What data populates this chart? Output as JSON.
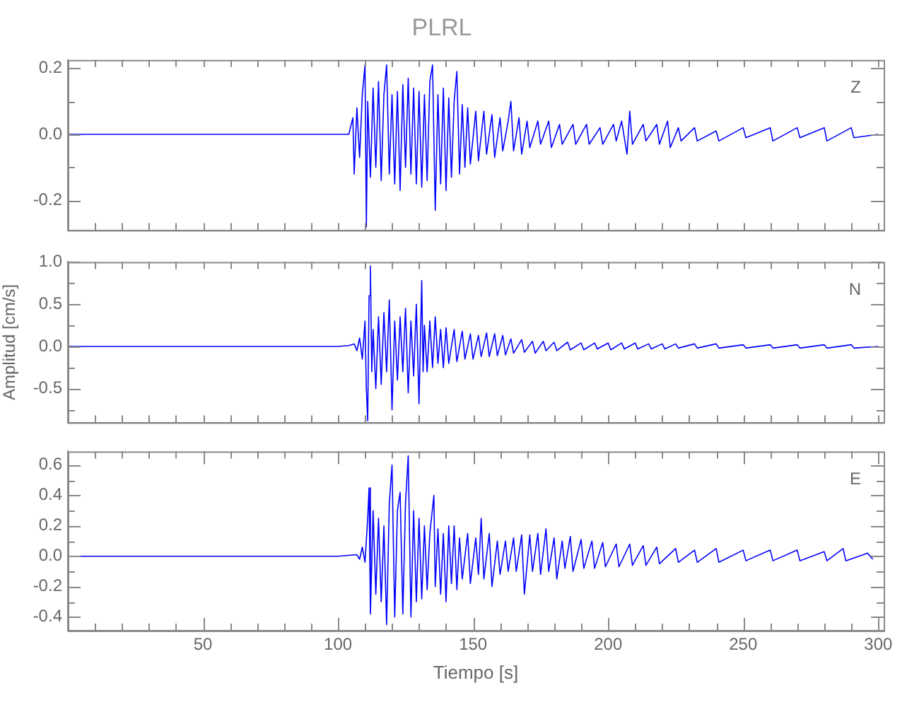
{
  "chart_data": [
    {
      "type": "line",
      "title": "PLRL",
      "annotations": [
        "Z"
      ],
      "xlim": [
        0,
        302
      ],
      "ylim": [
        -0.29,
        0.225
      ],
      "tick_labels": "y",
      "marker": "none",
      "grid": false,
      "xticks": [
        {
          "value": 10,
          "label": null
        },
        {
          "value": 20,
          "label": null
        },
        {
          "value": 30,
          "label": null
        },
        {
          "value": 40,
          "label": null
        },
        {
          "value": 50,
          "label": null
        },
        {
          "value": 60,
          "label": null
        },
        {
          "value": 70,
          "label": null
        },
        {
          "value": 80,
          "label": null
        },
        {
          "value": 90,
          "label": null
        },
        {
          "value": 100,
          "label": null
        },
        {
          "value": 110,
          "label": null
        },
        {
          "value": 120,
          "label": null
        },
        {
          "value": 130,
          "label": null
        },
        {
          "value": 140,
          "label": null
        },
        {
          "value": 150,
          "label": null
        },
        {
          "value": 160,
          "label": null
        },
        {
          "value": 170,
          "label": null
        },
        {
          "value": 180,
          "label": null
        },
        {
          "value": 190,
          "label": null
        },
        {
          "value": 200,
          "label": null
        },
        {
          "value": 210,
          "label": null
        },
        {
          "value": 220,
          "label": null
        },
        {
          "value": 230,
          "label": null
        },
        {
          "value": 240,
          "label": null
        },
        {
          "value": 250,
          "label": null
        },
        {
          "value": 260,
          "label": null
        },
        {
          "value": 270,
          "label": null
        },
        {
          "value": 280,
          "label": null
        },
        {
          "value": 290,
          "label": null
        },
        {
          "value": 300,
          "label": null
        }
      ],
      "yticks": [
        {
          "value": -0.2,
          "label": "-0.2"
        },
        {
          "value": -0.1,
          "label": null
        },
        {
          "value": 0,
          "label": "0.0"
        },
        {
          "value": 0.1,
          "label": null
        },
        {
          "value": 0.2,
          "label": "0.2"
        }
      ],
      "series": [
        {
          "color": "#0000ff",
          "x": [
            0,
            50,
            104,
            105.5,
            106,
            107,
            108,
            109,
            110,
            110.5,
            111,
            112,
            113,
            114,
            115,
            116,
            117,
            118,
            119,
            120,
            121,
            122,
            123,
            124,
            125,
            126,
            127,
            128,
            129,
            130,
            131,
            132,
            133,
            134,
            135,
            136,
            137,
            138,
            139,
            140,
            141,
            142,
            143,
            144,
            145,
            146,
            147,
            148,
            149,
            151,
            152,
            154,
            155,
            157,
            158,
            160,
            161,
            163,
            164,
            165,
            167,
            168,
            170,
            171,
            174,
            175,
            178,
            179,
            182,
            183,
            187,
            188,
            192,
            193,
            197,
            198,
            202,
            203,
            205,
            207,
            208,
            209,
            213,
            214,
            218,
            219,
            222,
            223,
            226,
            227,
            232,
            233,
            240,
            241,
            250,
            251,
            260,
            261,
            270,
            271,
            280,
            281,
            290,
            291,
            300
          ],
          "values": [
            0,
            0,
            0,
            0.05,
            -0.12,
            0.08,
            -0.07,
            0.12,
            0.21,
            -0.28,
            0.1,
            -0.13,
            0.14,
            -0.1,
            0.16,
            -0.14,
            0.12,
            0.21,
            -0.12,
            0.12,
            -0.15,
            0.13,
            -0.17,
            0.15,
            -0.1,
            0.17,
            -0.12,
            0.14,
            -0.15,
            0.13,
            -0.16,
            0.12,
            -0.14,
            0.16,
            0.21,
            -0.23,
            0.12,
            -0.15,
            0.14,
            -0.17,
            0.11,
            -0.13,
            0.1,
            0.19,
            -0.12,
            0.09,
            -0.1,
            0.08,
            -0.09,
            0.07,
            -0.08,
            0.07,
            -0.06,
            0.06,
            -0.07,
            0.05,
            -0.05,
            0.04,
            0.1,
            -0.05,
            0.05,
            -0.06,
            0.04,
            -0.04,
            0.04,
            -0.03,
            0.04,
            -0.04,
            0.03,
            -0.03,
            0.03,
            -0.03,
            0.03,
            -0.03,
            0.02,
            -0.03,
            0.03,
            -0.02,
            0.04,
            -0.06,
            0.07,
            -0.03,
            0.03,
            -0.02,
            0.03,
            -0.03,
            0.04,
            -0.04,
            0.02,
            -0.02,
            0.02,
            -0.02,
            0.01,
            -0.02,
            0.02,
            -0.01,
            0.02,
            -0.02,
            0.02,
            -0.01,
            0.02,
            -0.02,
            0.02,
            -0.01,
            0
          ]
        }
      ]
    },
    {
      "type": "line",
      "ylabel": "Amplitud [cm/s]",
      "annotations": [
        "N"
      ],
      "xlim": [
        0,
        302
      ],
      "ylim": [
        -0.9,
        1.0
      ],
      "tick_labels": "y",
      "marker": "none",
      "grid": false,
      "xticks": [
        {
          "value": 10,
          "label": null
        },
        {
          "value": 20,
          "label": null
        },
        {
          "value": 30,
          "label": null
        },
        {
          "value": 40,
          "label": null
        },
        {
          "value": 50,
          "label": null
        },
        {
          "value": 60,
          "label": null
        },
        {
          "value": 70,
          "label": null
        },
        {
          "value": 80,
          "label": null
        },
        {
          "value": 90,
          "label": null
        },
        {
          "value": 100,
          "label": null
        },
        {
          "value": 110,
          "label": null
        },
        {
          "value": 120,
          "label": null
        },
        {
          "value": 130,
          "label": null
        },
        {
          "value": 140,
          "label": null
        },
        {
          "value": 150,
          "label": null
        },
        {
          "value": 160,
          "label": null
        },
        {
          "value": 170,
          "label": null
        },
        {
          "value": 180,
          "label": null
        },
        {
          "value": 190,
          "label": null
        },
        {
          "value": 200,
          "label": null
        },
        {
          "value": 210,
          "label": null
        },
        {
          "value": 220,
          "label": null
        },
        {
          "value": 230,
          "label": null
        },
        {
          "value": 240,
          "label": null
        },
        {
          "value": 250,
          "label": null
        },
        {
          "value": 260,
          "label": null
        },
        {
          "value": 270,
          "label": null
        },
        {
          "value": 280,
          "label": null
        },
        {
          "value": 290,
          "label": null
        },
        {
          "value": 300,
          "label": null
        }
      ],
      "yticks": [
        {
          "value": -0.75,
          "label": null
        },
        {
          "value": -0.5,
          "label": "-0.5"
        },
        {
          "value": -0.25,
          "label": null
        },
        {
          "value": 0,
          "label": "0.0"
        },
        {
          "value": 0.25,
          "label": null
        },
        {
          "value": 0.5,
          "label": "0.5"
        },
        {
          "value": 0.75,
          "label": null
        },
        {
          "value": 1.0,
          "label": "1.0"
        }
      ],
      "series": [
        {
          "color": "#0000ff",
          "x": [
            0,
            50,
            100,
            104,
            106,
            107,
            108,
            109,
            110,
            110.5,
            111,
            111.5,
            112,
            112.5,
            113,
            114,
            115,
            116,
            117,
            118,
            119,
            120,
            121,
            122,
            123,
            124,
            125,
            126,
            127,
            128,
            129,
            130,
            131,
            131.5,
            132,
            133,
            134,
            135,
            136,
            137,
            138,
            139,
            140,
            141,
            143,
            144,
            146,
            147,
            149,
            150,
            152,
            153,
            155,
            156,
            158,
            159,
            161,
            162,
            164,
            165,
            168,
            169,
            172,
            173,
            176,
            177,
            180,
            181,
            185,
            186,
            190,
            191,
            195,
            196,
            200,
            201,
            205,
            206,
            210,
            211,
            215,
            216,
            220,
            221,
            225,
            226,
            232,
            233,
            240,
            241,
            250,
            251,
            260,
            261,
            270,
            271,
            280,
            281,
            290,
            291,
            300
          ],
          "values": [
            0,
            0,
            0,
            0.01,
            0.03,
            -0.05,
            0.1,
            -0.15,
            0.3,
            -0.5,
            -0.88,
            0.6,
            0.95,
            -0.3,
            0.2,
            -0.5,
            0.35,
            -0.45,
            0.4,
            -0.3,
            0.55,
            -0.75,
            0.3,
            -0.4,
            0.35,
            -0.3,
            0.45,
            -0.55,
            0.3,
            -0.35,
            0.5,
            -0.68,
            0.78,
            -0.3,
            0.25,
            -0.3,
            0.3,
            -0.25,
            0.35,
            -0.2,
            0.2,
            -0.25,
            0.22,
            -0.2,
            0.2,
            -0.18,
            0.18,
            -0.15,
            0.15,
            -0.15,
            0.13,
            -0.12,
            0.16,
            -0.12,
            0.15,
            -0.11,
            0.13,
            -0.1,
            0.09,
            -0.08,
            0.08,
            -0.07,
            0.06,
            -0.08,
            0.06,
            -0.05,
            0.05,
            -0.05,
            0.05,
            -0.04,
            0.04,
            -0.04,
            0.04,
            -0.03,
            0.04,
            -0.04,
            0.04,
            -0.03,
            0.04,
            -0.03,
            0.03,
            -0.03,
            0.03,
            -0.03,
            0.03,
            -0.02,
            0.03,
            -0.02,
            0.03,
            -0.02,
            0.02,
            -0.02,
            0.02,
            -0.02,
            0.02,
            -0.02,
            0.02,
            -0.02,
            0.02,
            -0.02,
            0
          ]
        }
      ]
    },
    {
      "type": "line",
      "xlabel": "Tiempo [s]",
      "annotations": [
        "E"
      ],
      "xlim": [
        0,
        302
      ],
      "ylim": [
        -0.49,
        0.69
      ],
      "marker": "none",
      "grid": false,
      "xticks": [
        {
          "value": 10,
          "label": null
        },
        {
          "value": 20,
          "label": null
        },
        {
          "value": 30,
          "label": null
        },
        {
          "value": 40,
          "label": null
        },
        {
          "value": 50,
          "label": "50"
        },
        {
          "value": 60,
          "label": null
        },
        {
          "value": 70,
          "label": null
        },
        {
          "value": 80,
          "label": null
        },
        {
          "value": 90,
          "label": null
        },
        {
          "value": 100,
          "label": "100"
        },
        {
          "value": 110,
          "label": null
        },
        {
          "value": 120,
          "label": null
        },
        {
          "value": 130,
          "label": null
        },
        {
          "value": 140,
          "label": null
        },
        {
          "value": 150,
          "label": "150"
        },
        {
          "value": 160,
          "label": null
        },
        {
          "value": 170,
          "label": null
        },
        {
          "value": 180,
          "label": null
        },
        {
          "value": 190,
          "label": null
        },
        {
          "value": 200,
          "label": "200"
        },
        {
          "value": 210,
          "label": null
        },
        {
          "value": 220,
          "label": null
        },
        {
          "value": 230,
          "label": null
        },
        {
          "value": 240,
          "label": null
        },
        {
          "value": 250,
          "label": "250"
        },
        {
          "value": 260,
          "label": null
        },
        {
          "value": 270,
          "label": null
        },
        {
          "value": 280,
          "label": null
        },
        {
          "value": 290,
          "label": null
        },
        {
          "value": 300,
          "label": "300"
        }
      ],
      "yticks": [
        {
          "value": -0.4,
          "label": "-0.4"
        },
        {
          "value": -0.3,
          "label": null
        },
        {
          "value": -0.2,
          "label": "-0.2"
        },
        {
          "value": -0.1,
          "label": null
        },
        {
          "value": 0,
          "label": "0.0"
        },
        {
          "value": 0.1,
          "label": null
        },
        {
          "value": 0.2,
          "label": "0.2"
        },
        {
          "value": 0.3,
          "label": null
        },
        {
          "value": 0.4,
          "label": "0.4"
        },
        {
          "value": 0.5,
          "label": null
        },
        {
          "value": 0.6,
          "label": "0.6"
        }
      ],
      "series": [
        {
          "color": "#0000ff",
          "x": [
            0,
            50,
            100,
            107,
            108,
            109,
            110,
            111,
            111.5,
            112,
            113,
            114,
            115,
            116,
            117,
            118,
            119,
            120,
            121,
            122,
            123,
            124,
            125,
            126,
            127,
            128,
            129,
            130,
            131,
            132,
            133,
            134,
            135.5,
            136,
            137,
            138,
            139,
            140,
            141,
            142,
            143,
            144,
            145,
            146,
            148,
            149,
            151,
            152,
            153,
            154,
            156,
            157,
            159,
            160,
            162,
            163,
            165,
            166,
            168,
            169,
            171,
            172,
            174,
            175,
            177,
            178,
            180,
            181,
            183,
            184,
            186,
            187,
            190,
            191,
            194,
            195,
            198,
            199,
            203,
            204,
            208,
            209,
            213,
            214,
            218,
            219,
            225,
            226,
            232,
            233,
            240,
            241,
            250,
            251,
            260,
            261,
            270,
            271,
            280,
            281,
            287,
            288,
            296,
            298
          ],
          "values": [
            0,
            0,
            0,
            0.01,
            -0.02,
            0.06,
            -0.04,
            0.25,
            0.45,
            -0.38,
            0.3,
            -0.25,
            0.25,
            -0.3,
            0.2,
            -0.45,
            0.35,
            0.6,
            -0.4,
            0.3,
            0.42,
            -0.38,
            0.35,
            0.66,
            -0.4,
            0.3,
            -0.3,
            0.25,
            -0.28,
            0.2,
            -0.22,
            0.15,
            0.4,
            -0.2,
            0.18,
            -0.25,
            0.15,
            -0.3,
            0.2,
            -0.18,
            0.2,
            -0.22,
            0.12,
            -0.15,
            0.15,
            -0.18,
            0.12,
            -0.12,
            0.25,
            -0.15,
            0.15,
            -0.2,
            0.1,
            -0.12,
            0.1,
            -0.1,
            0.12,
            -0.1,
            0.14,
            -0.25,
            0.14,
            -0.1,
            0.15,
            -0.12,
            0.18,
            -0.1,
            0.12,
            -0.15,
            0.1,
            -0.08,
            0.13,
            -0.1,
            0.11,
            -0.08,
            0.1,
            -0.08,
            0.09,
            -0.07,
            0.08,
            -0.07,
            0.08,
            -0.06,
            0.07,
            -0.06,
            0.06,
            -0.05,
            0.05,
            -0.04,
            0.04,
            -0.04,
            0.05,
            -0.04,
            0.04,
            -0.03,
            0.04,
            -0.03,
            0.04,
            -0.03,
            0.03,
            -0.03,
            0.05,
            -0.03,
            0.02,
            -0.02
          ]
        }
      ]
    }
  ]
}
